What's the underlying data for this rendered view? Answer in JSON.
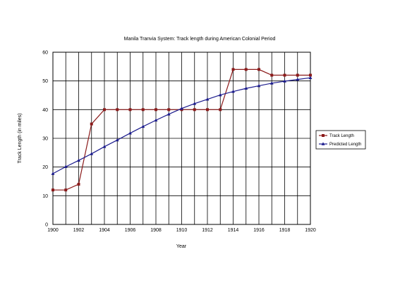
{
  "chart_data": {
    "type": "line",
    "title": "Manila Tranvia System: Track length during American Colonial Period",
    "xlabel": "Year",
    "ylabel": "Track Length (in miles)",
    "xlim": [
      1900,
      1920
    ],
    "ylim": [
      0,
      60
    ],
    "x_ticks": [
      "1900",
      "1902",
      "1904",
      "1906",
      "1908",
      "1910",
      "1912",
      "1914",
      "1916",
      "1918",
      "1920"
    ],
    "y_ticks": [
      "0",
      "10",
      "20",
      "30",
      "40",
      "50",
      "60"
    ],
    "grid": true,
    "legend_position": "right",
    "x": [
      1900,
      1901,
      1902,
      1903,
      1904,
      1905,
      1906,
      1907,
      1908,
      1909,
      1910,
      1911,
      1912,
      1913,
      1914,
      1915,
      1916,
      1917,
      1918,
      1919,
      1920
    ],
    "series": [
      {
        "name": "Track Length",
        "color": "#8B1A1A",
        "marker": "square",
        "values": [
          12,
          12,
          14,
          35,
          40,
          40,
          40,
          40,
          40,
          40,
          40,
          40,
          40,
          40,
          54,
          54,
          54,
          52,
          52,
          52,
          52
        ]
      },
      {
        "name": "Predicted Length",
        "color": "#1A1A8C",
        "marker": "triangle",
        "values": [
          17.7,
          20.1,
          22.3,
          24.6,
          27.1,
          29.4,
          31.8,
          34.1,
          36.3,
          38.4,
          40.4,
          42.1,
          43.6,
          45.1,
          46.3,
          47.4,
          48.3,
          49.2,
          49.9,
          50.5,
          51.1
        ]
      }
    ]
  }
}
